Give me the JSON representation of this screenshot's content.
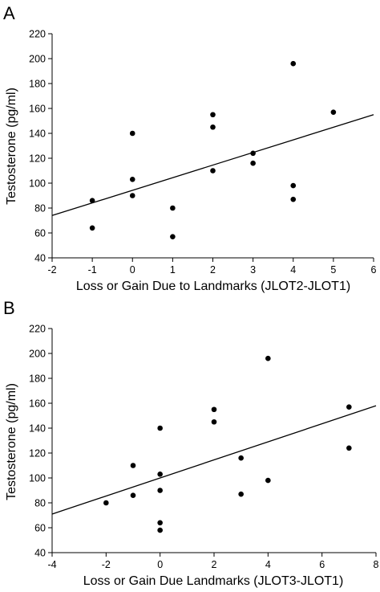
{
  "chart_data": [
    {
      "type": "scatter",
      "panel": "A",
      "xlabel": "Loss or Gain Due to Landmarks (JLOT2-JLOT1)",
      "ylabel": "Testosterone (pg/ml)",
      "xlim": [
        -2,
        6
      ],
      "ylim": [
        40,
        220
      ],
      "xticks": [
        -2,
        -1,
        0,
        1,
        2,
        3,
        4,
        5,
        6
      ],
      "yticks": [
        40,
        60,
        80,
        100,
        120,
        140,
        160,
        180,
        200,
        220
      ],
      "grid": false,
      "points": [
        {
          "x": -1,
          "y": 86
        },
        {
          "x": -1,
          "y": 64
        },
        {
          "x": 0,
          "y": 140
        },
        {
          "x": 0,
          "y": 103
        },
        {
          "x": 0,
          "y": 90
        },
        {
          "x": 1,
          "y": 80
        },
        {
          "x": 1,
          "y": 57
        },
        {
          "x": 2,
          "y": 155
        },
        {
          "x": 2,
          "y": 145
        },
        {
          "x": 2,
          "y": 110
        },
        {
          "x": 3,
          "y": 124
        },
        {
          "x": 3,
          "y": 116
        },
        {
          "x": 4,
          "y": 196
        },
        {
          "x": 4,
          "y": 98
        },
        {
          "x": 4,
          "y": 87
        },
        {
          "x": 5,
          "y": 157
        }
      ],
      "trendline": {
        "x": [
          -2,
          6
        ],
        "y": [
          74,
          155
        ]
      }
    },
    {
      "type": "scatter",
      "panel": "B",
      "xlabel": "Loss or Gain Due Landmarks (JLOT3-JLOT1)",
      "ylabel": "Testosterone (pg/ml)",
      "xlim": [
        -4,
        8
      ],
      "ylim": [
        40,
        220
      ],
      "xticks": [
        -4,
        -2,
        0,
        2,
        4,
        6,
        8
      ],
      "yticks": [
        40,
        60,
        80,
        100,
        120,
        140,
        160,
        180,
        200,
        220
      ],
      "grid": false,
      "points": [
        {
          "x": -2,
          "y": 80
        },
        {
          "x": -1,
          "y": 110
        },
        {
          "x": -1,
          "y": 86
        },
        {
          "x": 0,
          "y": 140
        },
        {
          "x": 0,
          "y": 103
        },
        {
          "x": 0,
          "y": 90
        },
        {
          "x": 0,
          "y": 64
        },
        {
          "x": 0,
          "y": 58
        },
        {
          "x": 2,
          "y": 155
        },
        {
          "x": 2,
          "y": 145
        },
        {
          "x": 3,
          "y": 116
        },
        {
          "x": 3,
          "y": 87
        },
        {
          "x": 4,
          "y": 196
        },
        {
          "x": 4,
          "y": 98
        },
        {
          "x": 7,
          "y": 157
        },
        {
          "x": 7,
          "y": 124
        }
      ],
      "trendline": {
        "x": [
          -4,
          8
        ],
        "y": [
          71,
          158
        ]
      }
    }
  ]
}
